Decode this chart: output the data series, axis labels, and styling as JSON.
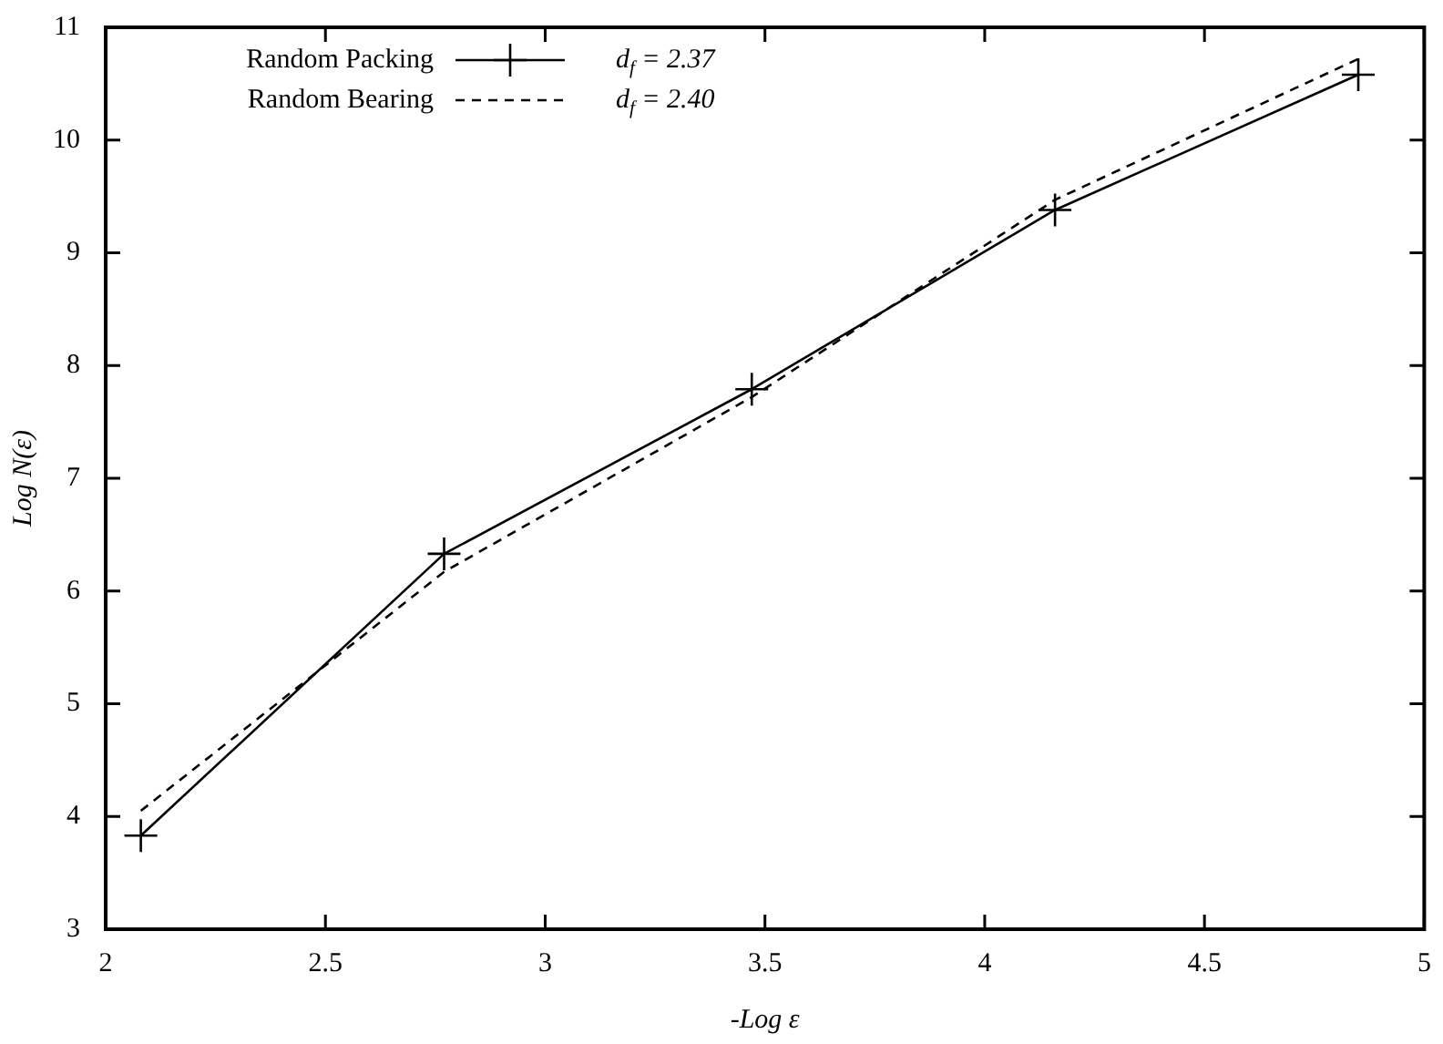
{
  "chart_data": {
    "type": "line",
    "xlabel": "-Log ε",
    "ylabel": "Log N(ε)",
    "xlim": [
      2,
      5
    ],
    "xticks": [
      2,
      2.5,
      3,
      3.5,
      4,
      4.5,
      5
    ],
    "ylim": [
      3,
      11
    ],
    "yticks": [
      3,
      4,
      5,
      6,
      7,
      8,
      9,
      10,
      11
    ],
    "grid": false,
    "legend": "top left",
    "series": [
      {
        "name": "Random Packing",
        "color": "#000000",
        "x": [
          2.08,
          2.77,
          3.47,
          4.16,
          4.85
        ],
        "values": [
          3.83,
          6.33,
          7.79,
          9.38,
          10.58
        ],
        "marker": "cross",
        "line_style": "solid"
      },
      {
        "name": "Random Bearing",
        "color": "#000000",
        "x": [
          2.08,
          2.77,
          3.47,
          4.16,
          4.85
        ],
        "values": [
          4.05,
          6.17,
          7.72,
          9.47,
          10.72
        ],
        "marker": "none",
        "line_style": "dashed"
      }
    ],
    "annotations": [
      "d$_{f}$ = 2.37",
      "d$_{f}$ = 2.40"
    ]
  }
}
